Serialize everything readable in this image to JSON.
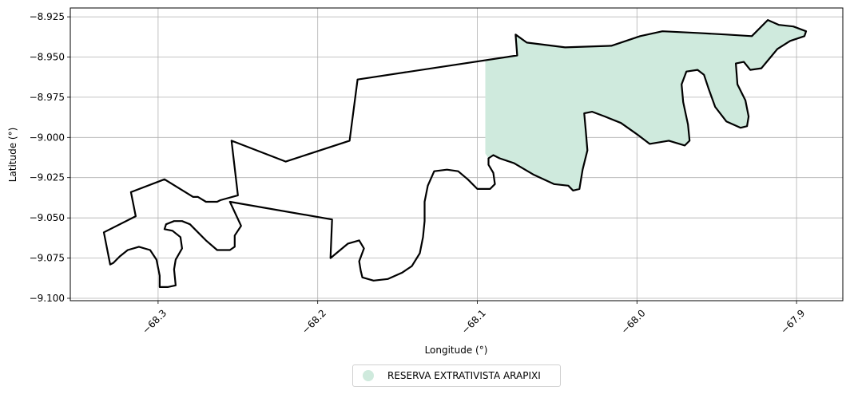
{
  "map": {
    "xlabel": "Longitude (°)",
    "ylabel": "Latitude (°)",
    "xlim": [
      -68.355,
      -67.871
    ],
    "ylim": [
      -9.1015,
      -8.9195
    ],
    "grid": true,
    "x_ticks": [
      {
        "value": -68.3,
        "label": "−68.3"
      },
      {
        "value": -68.2,
        "label": "−68.2"
      },
      {
        "value": -68.1,
        "label": "−68.1"
      },
      {
        "value": -68.0,
        "label": "−68.0"
      },
      {
        "value": -67.9,
        "label": "−67.9"
      }
    ],
    "y_ticks": [
      {
        "value": -8.925,
        "label": "−8.925"
      },
      {
        "value": -8.95,
        "label": "−8.950"
      },
      {
        "value": -8.975,
        "label": "−8.975"
      },
      {
        "value": -9.0,
        "label": "−9.000"
      },
      {
        "value": -9.025,
        "label": "−9.025"
      },
      {
        "value": -9.05,
        "label": "−9.050"
      },
      {
        "value": -9.075,
        "label": "−9.075"
      },
      {
        "value": -9.1,
        "label": "−9.100"
      }
    ],
    "outline_color": "#000000",
    "fill_color": "#cfeadd",
    "legend": {
      "label": "RESERVA EXTRATIVISTA ARAPIXI",
      "color": "#cfeadd",
      "placement": "bottom-center"
    },
    "boundary": [
      [
        -68.334,
        -9.059
      ],
      [
        -68.314,
        -9.049
      ],
      [
        -68.317,
        -9.034
      ],
      [
        -68.296,
        -9.026
      ],
      [
        -68.278,
        -9.037
      ],
      [
        -68.275,
        -9.037
      ],
      [
        -68.27,
        -9.04
      ],
      [
        -68.263,
        -9.04
      ],
      [
        -68.261,
        -9.039
      ],
      [
        -68.25,
        -9.036
      ],
      [
        -68.254,
        -9.002
      ],
      [
        -68.22,
        -9.015
      ],
      [
        -68.18,
        -9.002
      ],
      [
        -68.175,
        -8.964
      ],
      [
        -68.075,
        -8.949
      ],
      [
        -68.076,
        -8.936
      ],
      [
        -68.069,
        -8.941
      ],
      [
        -68.045,
        -8.944
      ],
      [
        -68.016,
        -8.943
      ],
      [
        -67.998,
        -8.937
      ],
      [
        -67.984,
        -8.934
      ],
      [
        -67.962,
        -8.935
      ],
      [
        -67.944,
        -8.936
      ],
      [
        -67.928,
        -8.937
      ],
      [
        -67.918,
        -8.927
      ],
      [
        -67.911,
        -8.93
      ],
      [
        -67.902,
        -8.931
      ],
      [
        -67.894,
        -8.934
      ],
      [
        -67.895,
        -8.937
      ],
      [
        -67.904,
        -8.94
      ],
      [
        -67.912,
        -8.945
      ],
      [
        -67.917,
        -8.951
      ],
      [
        -67.922,
        -8.957
      ],
      [
        -67.929,
        -8.958
      ],
      [
        -67.933,
        -8.953
      ],
      [
        -67.938,
        -8.954
      ],
      [
        -67.937,
        -8.967
      ],
      [
        -67.932,
        -8.977
      ],
      [
        -67.93,
        -8.987
      ],
      [
        -67.931,
        -8.993
      ],
      [
        -67.935,
        -8.994
      ],
      [
        -67.944,
        -8.99
      ],
      [
        -67.951,
        -8.981
      ],
      [
        -67.955,
        -8.97
      ],
      [
        -67.958,
        -8.961
      ],
      [
        -67.962,
        -8.958
      ],
      [
        -67.969,
        -8.959
      ],
      [
        -67.972,
        -8.967
      ],
      [
        -67.971,
        -8.978
      ],
      [
        -67.968,
        -8.992
      ],
      [
        -67.967,
        -9.002
      ],
      [
        -67.97,
        -9.005
      ],
      [
        -67.98,
        -9.002
      ],
      [
        -67.992,
        -9.004
      ],
      [
        -68.0,
        -8.998
      ],
      [
        -68.01,
        -8.991
      ],
      [
        -68.02,
        -8.987
      ],
      [
        -68.028,
        -8.984
      ],
      [
        -68.033,
        -8.985
      ],
      [
        -68.032,
        -8.996
      ],
      [
        -68.031,
        -9.008
      ],
      [
        -68.034,
        -9.02
      ],
      [
        -68.036,
        -9.032
      ],
      [
        -68.04,
        -9.033
      ],
      [
        -68.043,
        -9.03
      ],
      [
        -68.052,
        -9.029
      ],
      [
        -68.065,
        -9.023
      ],
      [
        -68.077,
        -9.016
      ],
      [
        -68.086,
        -9.013
      ],
      [
        -68.09,
        -9.011
      ],
      [
        -68.093,
        -9.013
      ],
      [
        -68.093,
        -9.017
      ],
      [
        -68.09,
        -9.022
      ],
      [
        -68.089,
        -9.029
      ],
      [
        -68.092,
        -9.032
      ],
      [
        -68.1,
        -9.032
      ],
      [
        -68.106,
        -9.026
      ],
      [
        -68.112,
        -9.021
      ],
      [
        -68.119,
        -9.02
      ],
      [
        -68.127,
        -9.021
      ],
      [
        -68.131,
        -9.03
      ],
      [
        -68.133,
        -9.04
      ],
      [
        -68.133,
        -9.052
      ],
      [
        -68.134,
        -9.062
      ],
      [
        -68.136,
        -9.072
      ],
      [
        -68.141,
        -9.08
      ],
      [
        -68.147,
        -9.084
      ],
      [
        -68.156,
        -9.088
      ],
      [
        -68.165,
        -9.089
      ],
      [
        -68.172,
        -9.087
      ],
      [
        -68.173,
        -9.083
      ],
      [
        -68.174,
        -9.077
      ],
      [
        -68.171,
        -9.069
      ],
      [
        -68.174,
        -9.064
      ],
      [
        -68.181,
        -9.066
      ],
      [
        -68.192,
        -9.075
      ],
      [
        -68.191,
        -9.051
      ],
      [
        -68.255,
        -9.04
      ],
      [
        -68.248,
        -9.055
      ],
      [
        -68.252,
        -9.061
      ],
      [
        -68.252,
        -9.068
      ],
      [
        -68.255,
        -9.07
      ],
      [
        -68.263,
        -9.07
      ],
      [
        -68.27,
        -9.064
      ],
      [
        -68.275,
        -9.059
      ],
      [
        -68.28,
        -9.054
      ],
      [
        -68.285,
        -9.052
      ],
      [
        -68.29,
        -9.052
      ],
      [
        -68.295,
        -9.054
      ],
      [
        -68.296,
        -9.057
      ],
      [
        -68.291,
        -9.058
      ],
      [
        -68.286,
        -9.062
      ],
      [
        -68.285,
        -9.069
      ],
      [
        -68.289,
        -9.076
      ],
      [
        -68.29,
        -9.082
      ],
      [
        -68.289,
        -9.092
      ],
      [
        -68.294,
        -9.093
      ],
      [
        -68.299,
        -9.093
      ],
      [
        -68.299,
        -9.086
      ],
      [
        -68.301,
        -9.076
      ],
      [
        -68.305,
        -9.07
      ],
      [
        -68.312,
        -9.068
      ],
      [
        -68.319,
        -9.07
      ],
      [
        -68.324,
        -9.074
      ],
      [
        -68.328,
        -9.078
      ],
      [
        -68.33,
        -9.079
      ],
      [
        -68.334,
        -9.059
      ]
    ],
    "region": [
      [
        -68.095,
        -8.952
      ],
      [
        -68.075,
        -8.949
      ],
      [
        -68.076,
        -8.936
      ],
      [
        -68.069,
        -8.941
      ],
      [
        -68.045,
        -8.944
      ],
      [
        -68.016,
        -8.943
      ],
      [
        -67.998,
        -8.937
      ],
      [
        -67.984,
        -8.934
      ],
      [
        -67.962,
        -8.935
      ],
      [
        -67.944,
        -8.936
      ],
      [
        -67.928,
        -8.937
      ],
      [
        -67.918,
        -8.927
      ],
      [
        -67.911,
        -8.93
      ],
      [
        -67.902,
        -8.931
      ],
      [
        -67.894,
        -8.934
      ],
      [
        -67.895,
        -8.937
      ],
      [
        -67.904,
        -8.94
      ],
      [
        -67.912,
        -8.945
      ],
      [
        -67.917,
        -8.951
      ],
      [
        -67.922,
        -8.957
      ],
      [
        -67.929,
        -8.958
      ],
      [
        -67.933,
        -8.953
      ],
      [
        -67.938,
        -8.954
      ],
      [
        -67.937,
        -8.967
      ],
      [
        -67.932,
        -8.977
      ],
      [
        -67.93,
        -8.987
      ],
      [
        -67.931,
        -8.993
      ],
      [
        -67.935,
        -8.994
      ],
      [
        -67.944,
        -8.99
      ],
      [
        -67.951,
        -8.981
      ],
      [
        -67.955,
        -8.97
      ],
      [
        -67.958,
        -8.961
      ],
      [
        -67.962,
        -8.958
      ],
      [
        -67.969,
        -8.959
      ],
      [
        -67.972,
        -8.967
      ],
      [
        -67.971,
        -8.978
      ],
      [
        -67.968,
        -8.992
      ],
      [
        -67.967,
        -9.002
      ],
      [
        -67.97,
        -9.005
      ],
      [
        -67.98,
        -9.002
      ],
      [
        -67.992,
        -9.004
      ],
      [
        -68.0,
        -8.998
      ],
      [
        -68.01,
        -8.991
      ],
      [
        -68.02,
        -8.987
      ],
      [
        -68.028,
        -8.984
      ],
      [
        -68.033,
        -8.985
      ],
      [
        -68.032,
        -8.996
      ],
      [
        -68.031,
        -9.008
      ],
      [
        -68.034,
        -9.02
      ],
      [
        -68.036,
        -9.032
      ],
      [
        -68.04,
        -9.033
      ],
      [
        -68.043,
        -9.03
      ],
      [
        -68.052,
        -9.029
      ],
      [
        -68.065,
        -9.023
      ],
      [
        -68.077,
        -9.016
      ],
      [
        -68.086,
        -9.013
      ],
      [
        -68.09,
        -9.011
      ],
      [
        -68.093,
        -9.013
      ],
      [
        -68.095,
        -9.01
      ]
    ]
  }
}
